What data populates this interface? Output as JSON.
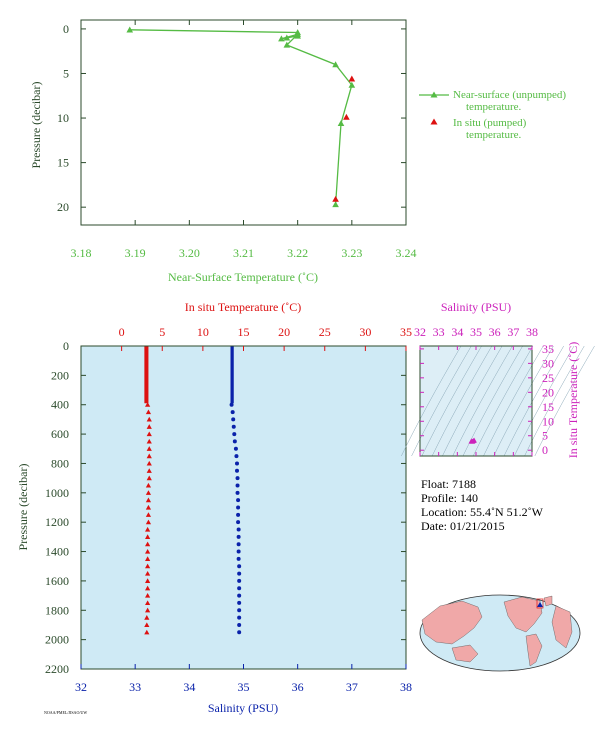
{
  "colors": {
    "green": "#55bb44",
    "red": "#dd1111",
    "blue": "#0a22aa",
    "magenta": "#cc22bb",
    "axis_dark": "#2b4a2b",
    "plot_bg": "#cfeaf5",
    "tsd_bg": "#ddeef6",
    "map_ocean": "#cfeaf5",
    "map_land": "#f0a8a8"
  },
  "chart_data": [
    {
      "id": "near-surface-temperature",
      "type": "line",
      "xlabel": "Near-Surface Temperature (˚C)",
      "ylabel": "Pressure (decibar)",
      "xlim": [
        3.18,
        3.24
      ],
      "ylim": [
        22,
        -1
      ],
      "x_ticks": [
        "3.18",
        "3.19",
        "3.20",
        "3.21",
        "3.22",
        "3.23",
        "3.24"
      ],
      "y_ticks": [
        "0",
        "5",
        "10",
        "15",
        "20"
      ],
      "legend_position": "right",
      "series": [
        {
          "name": "Near-surface (unpumped) temperature.",
          "marker": "triangle",
          "points": [
            [
              3.189,
              0.1
            ],
            [
              3.22,
              0.4
            ],
            [
              3.22,
              0.8
            ],
            [
              3.218,
              1.0
            ],
            [
              3.217,
              1.1
            ],
            [
              3.22,
              0.6
            ],
            [
              3.218,
              1.8
            ],
            [
              3.227,
              4.0
            ],
            [
              3.23,
              6.3
            ],
            [
              3.228,
              10.6
            ],
            [
              3.227,
              19.7
            ]
          ]
        },
        {
          "name": "In situ (pumped) temperature.",
          "marker": "triangle",
          "points": [
            [
              3.23,
              5.6
            ],
            [
              3.229,
              9.9
            ],
            [
              3.227,
              19.1
            ]
          ]
        }
      ]
    },
    {
      "id": "profile",
      "type": "scatter",
      "ylabel": "Pressure (decibar)",
      "ylim": [
        2200,
        0
      ],
      "y_ticks": [
        "0",
        "200",
        "400",
        "600",
        "800",
        "1000",
        "1200",
        "1400",
        "1600",
        "1800",
        "2000",
        "2200"
      ],
      "top_axis": {
        "label": "In situ Temperature (˚C)",
        "range": [
          -5,
          35
        ],
        "ticks": [
          "0",
          "5",
          "10",
          "15",
          "20",
          "25",
          "30",
          "35"
        ]
      },
      "bottom_axis": {
        "label": "Salinity (PSU)",
        "range": [
          32,
          38
        ],
        "ticks": [
          "32",
          "33",
          "34",
          "35",
          "36",
          "37",
          "38"
        ]
      },
      "series": [
        {
          "name": "In situ Temperature",
          "axis": "top",
          "marker": "triangle",
          "surface_band": {
            "pressure": [
              2,
              390
            ],
            "value_range": [
              2.8,
              3.3
            ]
          },
          "points": [
            [
              3.2,
              400
            ],
            [
              3.3,
              450
            ],
            [
              3.4,
              500
            ],
            [
              3.4,
              550
            ],
            [
              3.4,
              600
            ],
            [
              3.4,
              650
            ],
            [
              3.4,
              700
            ],
            [
              3.4,
              750
            ],
            [
              3.4,
              800
            ],
            [
              3.4,
              850
            ],
            [
              3.4,
              900
            ],
            [
              3.3,
              950
            ],
            [
              3.3,
              1000
            ],
            [
              3.3,
              1050
            ],
            [
              3.3,
              1100
            ],
            [
              3.3,
              1150
            ],
            [
              3.3,
              1200
            ],
            [
              3.2,
              1250
            ],
            [
              3.2,
              1300
            ],
            [
              3.2,
              1350
            ],
            [
              3.2,
              1400
            ],
            [
              3.2,
              1450
            ],
            [
              3.2,
              1500
            ],
            [
              3.2,
              1550
            ],
            [
              3.2,
              1600
            ],
            [
              3.2,
              1650
            ],
            [
              3.2,
              1700
            ],
            [
              3.2,
              1750
            ],
            [
              3.2,
              1800
            ],
            [
              3.1,
              1850
            ],
            [
              3.1,
              1900
            ],
            [
              3.1,
              1950
            ]
          ]
        },
        {
          "name": "Salinity",
          "axis": "bottom",
          "marker": "circle",
          "surface_band": {
            "pressure": [
              2,
              390
            ],
            "value_range": [
              34.76,
              34.82
            ]
          },
          "points": [
            [
              34.78,
              400
            ],
            [
              34.8,
              450
            ],
            [
              34.81,
              500
            ],
            [
              34.82,
              550
            ],
            [
              34.83,
              600
            ],
            [
              34.84,
              650
            ],
            [
              34.86,
              700
            ],
            [
              34.87,
              750
            ],
            [
              34.88,
              800
            ],
            [
              34.88,
              850
            ],
            [
              34.89,
              900
            ],
            [
              34.89,
              950
            ],
            [
              34.89,
              1000
            ],
            [
              34.9,
              1050
            ],
            [
              34.9,
              1100
            ],
            [
              34.9,
              1150
            ],
            [
              34.9,
              1200
            ],
            [
              34.91,
              1250
            ],
            [
              34.91,
              1300
            ],
            [
              34.91,
              1350
            ],
            [
              34.91,
              1400
            ],
            [
              34.91,
              1450
            ],
            [
              34.92,
              1500
            ],
            [
              34.92,
              1550
            ],
            [
              34.92,
              1600
            ],
            [
              34.92,
              1650
            ],
            [
              34.92,
              1700
            ],
            [
              34.92,
              1750
            ],
            [
              34.92,
              1800
            ],
            [
              34.92,
              1850
            ],
            [
              34.92,
              1900
            ],
            [
              34.92,
              1950
            ]
          ]
        }
      ]
    },
    {
      "id": "ts-diagram",
      "type": "scatter",
      "xlabel": "Salinity (PSU)",
      "ylabel": "In situ Temperature (˚C)",
      "xlim": [
        32,
        38
      ],
      "ylim": [
        -2,
        36
      ],
      "x_ticks": [
        "32",
        "33",
        "34",
        "35",
        "36",
        "37",
        "38"
      ],
      "y_ticks": [
        "0",
        "5",
        "10",
        "15",
        "20",
        "25",
        "30",
        "35"
      ],
      "points": [
        [
          34.85,
          3.2
        ],
        [
          34.9,
          3.4
        ],
        [
          34.8,
          3.0
        ],
        [
          34.75,
          3.1
        ]
      ]
    }
  ],
  "float_info": {
    "float": "Float:  7188",
    "profile": "Profile:  140",
    "location": "Location:  55.4˚N  51.2˚W",
    "date": "Date:  01/21/2015"
  },
  "map": {
    "icon": "world-map-icon",
    "marker_lat": 55.4,
    "marker_lon": -51.2
  },
  "footer": {
    "stamp": "NOAA/PMEL/JISAO/UW"
  }
}
